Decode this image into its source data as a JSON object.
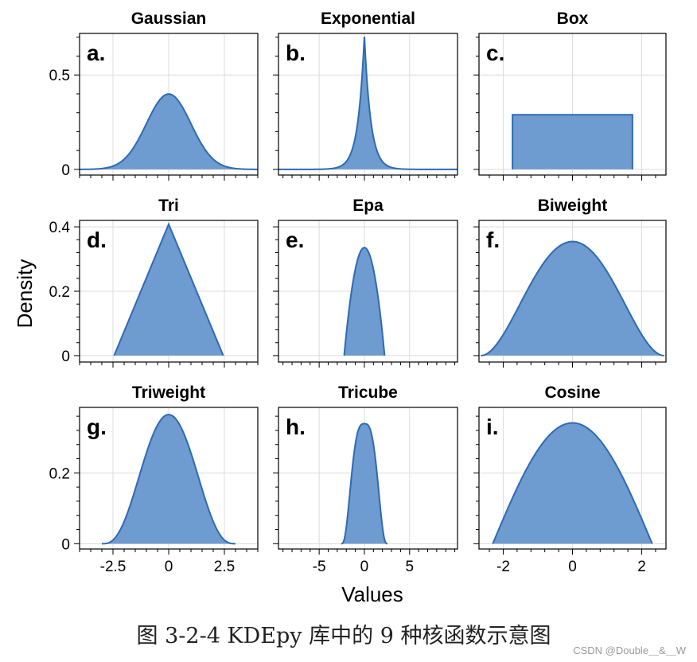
{
  "figure": {
    "ylabel": "Density",
    "xlabel": "Values",
    "caption": "图 3-2-4 KDEpy 库中的 9 种核函数示意图",
    "watermark": "CSDN @Double＿&＿W",
    "fill_color": "#6e9bd0",
    "line_color": "#2f6ab2"
  },
  "chart_data": [
    {
      "type": "area",
      "letter": "a.",
      "title": "Gaussian",
      "kernel": "gaussian",
      "xlim": [
        -4,
        4
      ],
      "ylim": [
        -0.03,
        0.72
      ],
      "xticks": [
        -2.5,
        0,
        2.5
      ],
      "xtick_labels": [
        "-2.5",
        "0",
        "2.5"
      ],
      "yticks": [
        0,
        0.5
      ],
      "ytick_labels": [
        "0",
        "0.5"
      ],
      "support": [
        -4,
        4
      ],
      "peak": 0.399,
      "grid": true
    },
    {
      "type": "area",
      "letter": "b.",
      "title": "Exponential",
      "kernel": "exponential",
      "xlim": [
        -9.5,
        10.3
      ],
      "ylim": [
        -0.03,
        0.72
      ],
      "xticks": [
        -5,
        0,
        5
      ],
      "xtick_labels": [
        "-5",
        "0",
        "5"
      ],
      "yticks": [
        0,
        0.5
      ],
      "ytick_labels": [
        "",
        ""
      ],
      "support": [
        -9.5,
        10.3
      ],
      "peak": 0.707,
      "grid": true
    },
    {
      "type": "area",
      "letter": "c.",
      "title": "Box",
      "kernel": "box",
      "xlim": [
        -2.7,
        2.7
      ],
      "ylim": [
        -0.03,
        0.72
      ],
      "xticks": [
        -2,
        0,
        2
      ],
      "xtick_labels": [
        "-2",
        "0",
        "2"
      ],
      "yticks": [
        0,
        0.5
      ],
      "ytick_labels": [
        "",
        ""
      ],
      "support": [
        -1.732,
        1.732
      ],
      "peak": 0.289,
      "grid": true
    },
    {
      "type": "area",
      "letter": "d.",
      "title": "Tri",
      "kernel": "tri",
      "xlim": [
        -4,
        4
      ],
      "ylim": [
        -0.02,
        0.42
      ],
      "xticks": [
        -2.5,
        0,
        2.5
      ],
      "xtick_labels": [
        "-2.5",
        "0",
        "2.5"
      ],
      "yticks": [
        0,
        0.2,
        0.4
      ],
      "ytick_labels": [
        "0",
        "0.2",
        "0.4"
      ],
      "support": [
        -2.449,
        2.449
      ],
      "peak": 0.408,
      "grid": true
    },
    {
      "type": "area",
      "letter": "e.",
      "title": "Epa",
      "kernel": "epa",
      "xlim": [
        -9.5,
        10.3
      ],
      "ylim": [
        -0.02,
        0.42
      ],
      "xticks": [
        -5,
        0,
        5
      ],
      "xtick_labels": [
        "-5",
        "0",
        "5"
      ],
      "yticks": [
        0,
        0.2,
        0.4
      ],
      "ytick_labels": [
        "",
        "",
        ""
      ],
      "support": [
        -2.236,
        2.236
      ],
      "peak": 0.335,
      "grid": true
    },
    {
      "type": "area",
      "letter": "f.",
      "title": "Biweight",
      "kernel": "biweight",
      "xlim": [
        -2.7,
        2.7
      ],
      "ylim": [
        -0.02,
        0.42
      ],
      "xticks": [
        -2,
        0,
        2
      ],
      "xtick_labels": [
        "-2",
        "0",
        "2"
      ],
      "yticks": [
        0,
        0.2,
        0.4
      ],
      "ytick_labels": [
        "",
        "",
        ""
      ],
      "support": [
        -2.646,
        2.646
      ],
      "peak": 0.354,
      "grid": true
    },
    {
      "type": "area",
      "letter": "g.",
      "title": "Triweight",
      "kernel": "triweight",
      "xlim": [
        -4,
        4
      ],
      "ylim": [
        -0.015,
        0.385
      ],
      "xticks": [
        -2.5,
        0,
        2.5
      ],
      "xtick_labels": [
        "-2.5",
        "0",
        "2.5"
      ],
      "yticks": [
        0,
        0.2
      ],
      "ytick_labels": [
        "0",
        "0.2"
      ],
      "support": [
        -3,
        3
      ],
      "peak": 0.371,
      "grid": true
    },
    {
      "type": "area",
      "letter": "h.",
      "title": "Tricube",
      "kernel": "tricube",
      "xlim": [
        -9.5,
        10.3
      ],
      "ylim": [
        -0.015,
        0.385
      ],
      "xticks": [
        -5,
        0,
        5
      ],
      "xtick_labels": [
        "-5",
        "0",
        "5"
      ],
      "yticks": [
        0,
        0.2
      ],
      "ytick_labels": [
        "",
        ""
      ],
      "support": [
        -2.55,
        2.55
      ],
      "peak": 0.334,
      "grid": true
    },
    {
      "type": "area",
      "letter": "i.",
      "title": "Cosine",
      "kernel": "cosine",
      "xlim": [
        -2.7,
        2.7
      ],
      "ylim": [
        -0.015,
        0.385
      ],
      "xticks": [
        -2,
        0,
        2
      ],
      "xtick_labels": [
        "-2",
        "0",
        "2"
      ],
      "yticks": [
        0,
        0.2
      ],
      "ytick_labels": [
        "",
        ""
      ],
      "support": [
        -2.302,
        2.302
      ],
      "peak": 0.341,
      "grid": true
    }
  ]
}
